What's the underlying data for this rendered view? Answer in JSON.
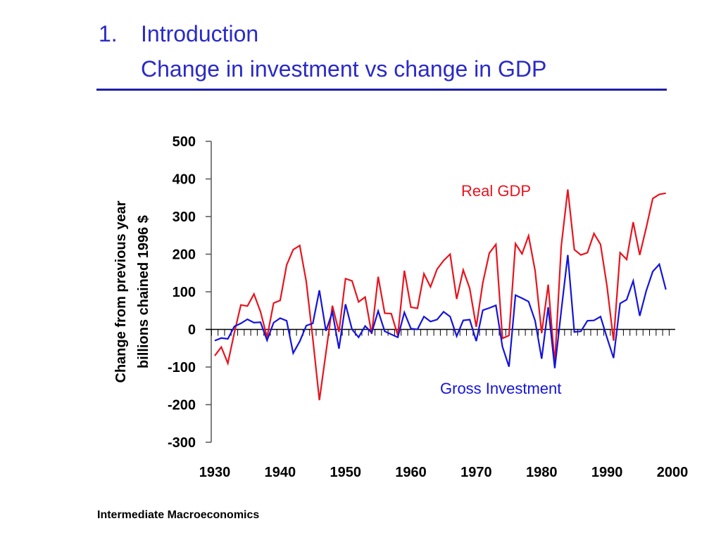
{
  "slide": {
    "title_number": "1.",
    "title_line1": "Introduction",
    "title_line2": "Change in investment vs change in GDP",
    "footer": "Intermediate Macroeconomics",
    "colors": {
      "title": "#2a2ac8",
      "divider": "#1e1ea8"
    }
  },
  "chart_data": {
    "type": "line",
    "title": "Change in investment vs change in GDP",
    "xlabel": "",
    "ylabel_line1": "Change from previous year",
    "ylabel_line2": "billions chained 1996 $",
    "xlim": [
      1930,
      2000
    ],
    "ylim": [
      -300,
      500
    ],
    "x_ticks": [
      1930,
      1940,
      1950,
      1960,
      1970,
      1980,
      1990,
      2000
    ],
    "x_tick_labels": [
      "1930",
      "1940",
      "1950",
      "1960",
      "1970",
      "1980",
      "1990",
      "2000"
    ],
    "y_ticks": [
      500,
      400,
      300,
      200,
      100,
      0,
      -100,
      -200,
      -300
    ],
    "y_tick_labels": [
      "500",
      "400",
      "300",
      "200",
      "100",
      "0",
      "-100",
      "-200",
      "-300"
    ],
    "grid": false,
    "legend": "inline labels",
    "x": [
      1930,
      1931,
      1932,
      1933,
      1934,
      1935,
      1936,
      1937,
      1938,
      1939,
      1940,
      1941,
      1942,
      1943,
      1944,
      1945,
      1946,
      1947,
      1948,
      1949,
      1950,
      1951,
      1952,
      1953,
      1954,
      1955,
      1956,
      1957,
      1958,
      1959,
      1960,
      1961,
      1962,
      1963,
      1964,
      1965,
      1966,
      1967,
      1968,
      1969,
      1970,
      1971,
      1972,
      1973,
      1974,
      1975,
      1976,
      1977,
      1978,
      1979,
      1980,
      1981,
      1982,
      1983,
      1984,
      1985,
      1986,
      1987,
      1988,
      1989,
      1990,
      1991,
      1992,
      1993,
      1994,
      1995,
      1996,
      1997,
      1998,
      1999
    ],
    "series": [
      {
        "name": "Real GDP",
        "color": "#e8141e",
        "values": [
          -70,
          -47,
          -90,
          -8,
          65,
          62,
          94,
          47,
          -21,
          70,
          77,
          171,
          212,
          223,
          127,
          -25,
          -188,
          -62,
          63,
          -7,
          135,
          129,
          73,
          86,
          -12,
          140,
          43,
          42,
          -16,
          156,
          59,
          56,
          148,
          113,
          160,
          183,
          200,
          81,
          158,
          109,
          7,
          124,
          203,
          226,
          -24,
          -16,
          228,
          201,
          249,
          156,
          -10,
          119,
          -91,
          221,
          372,
          212,
          198,
          204,
          255,
          226,
          115,
          -30,
          204,
          186,
          285,
          198,
          271,
          348,
          359,
          362
        ]
      },
      {
        "name": "Gross Investment",
        "color": "#1414dc",
        "values": [
          -30,
          -23,
          -25,
          8,
          16,
          27,
          18,
          19,
          -29,
          18,
          30,
          23,
          -63,
          -32,
          10,
          16,
          104,
          -4,
          46,
          -51,
          67,
          0,
          -21,
          9,
          -9,
          49,
          -5,
          -13,
          -21,
          45,
          2,
          0,
          34,
          21,
          26,
          47,
          34,
          -18,
          24,
          26,
          -31,
          51,
          57,
          64,
          -46,
          -99,
          91,
          83,
          74,
          23,
          -78,
          59,
          -103,
          49,
          198,
          -7,
          -5,
          23,
          24,
          34,
          -22,
          -76,
          69,
          79,
          129,
          36,
          103,
          154,
          173,
          106
        ]
      }
    ]
  }
}
